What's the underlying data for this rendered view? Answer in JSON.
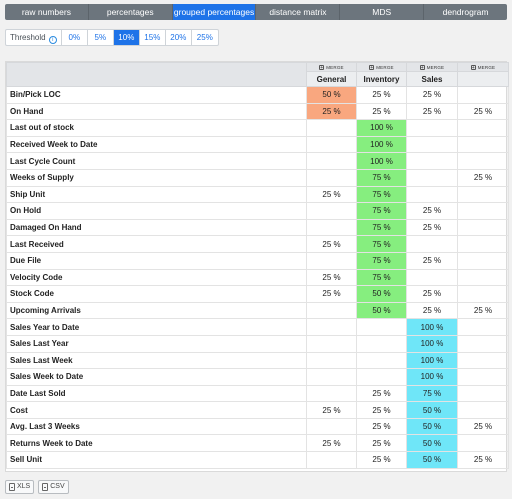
{
  "tabs": [
    {
      "label": "raw numbers",
      "active": false
    },
    {
      "label": "percentages",
      "active": false
    },
    {
      "label": "grouped percentages",
      "active": true
    },
    {
      "label": "distance matrix",
      "active": false
    },
    {
      "label": "MDS",
      "active": false
    },
    {
      "label": "dendrogram",
      "active": false
    }
  ],
  "threshold": {
    "label": "Threshold",
    "info_icon": "i",
    "options": [
      {
        "label": "0%",
        "active": false
      },
      {
        "label": "5%",
        "active": false
      },
      {
        "label": "10%",
        "active": true
      },
      {
        "label": "15%",
        "active": false
      },
      {
        "label": "20%",
        "active": false
      },
      {
        "label": "25%",
        "active": false
      }
    ]
  },
  "table": {
    "merge_label": "MERGE",
    "columns": [
      "General",
      "Inventory",
      "Sales",
      ""
    ],
    "highlight_colors": {
      "orange": "#f9a77f",
      "green": "#86ee7f",
      "cyan": "#6fe6f8"
    },
    "rows": [
      {
        "label": "Bin/Pick LOC",
        "cells": [
          "50 %",
          "25 %",
          "25 %",
          ""
        ],
        "highlight": 0,
        "color": "orange"
      },
      {
        "label": "On Hand",
        "cells": [
          "25 %",
          "25 %",
          "25 %",
          "25 %"
        ],
        "highlight": 0,
        "color": "orange"
      },
      {
        "label": "Last out of stock",
        "cells": [
          "",
          "100 %",
          "",
          ""
        ],
        "highlight": 1,
        "color": "green"
      },
      {
        "label": "Received Week to Date",
        "cells": [
          "",
          "100 %",
          "",
          ""
        ],
        "highlight": 1,
        "color": "green"
      },
      {
        "label": "Last Cycle Count",
        "cells": [
          "",
          "100 %",
          "",
          ""
        ],
        "highlight": 1,
        "color": "green"
      },
      {
        "label": "Weeks of Supply",
        "cells": [
          "",
          "75 %",
          "",
          "25 %"
        ],
        "highlight": 1,
        "color": "green"
      },
      {
        "label": "Ship Unit",
        "cells": [
          "25 %",
          "75 %",
          "",
          ""
        ],
        "highlight": 1,
        "color": "green"
      },
      {
        "label": "On Hold",
        "cells": [
          "",
          "75 %",
          "25 %",
          ""
        ],
        "highlight": 1,
        "color": "green"
      },
      {
        "label": "Damaged On Hand",
        "cells": [
          "",
          "75 %",
          "25 %",
          ""
        ],
        "highlight": 1,
        "color": "green"
      },
      {
        "label": "Last Received",
        "cells": [
          "25 %",
          "75 %",
          "",
          ""
        ],
        "highlight": 1,
        "color": "green"
      },
      {
        "label": "Due File",
        "cells": [
          "",
          "75 %",
          "25 %",
          ""
        ],
        "highlight": 1,
        "color": "green"
      },
      {
        "label": "Velocity Code",
        "cells": [
          "25 %",
          "75 %",
          "",
          ""
        ],
        "highlight": 1,
        "color": "green"
      },
      {
        "label": "Stock Code",
        "cells": [
          "25 %",
          "50 %",
          "25 %",
          ""
        ],
        "highlight": 1,
        "color": "green"
      },
      {
        "label": "Upcoming Arrivals",
        "cells": [
          "",
          "50 %",
          "25 %",
          "25 %"
        ],
        "highlight": 1,
        "color": "green"
      },
      {
        "label": "Sales Year to Date",
        "cells": [
          "",
          "",
          "100 %",
          ""
        ],
        "highlight": 2,
        "color": "cyan"
      },
      {
        "label": "Sales Last Year",
        "cells": [
          "",
          "",
          "100 %",
          ""
        ],
        "highlight": 2,
        "color": "cyan"
      },
      {
        "label": "Sales Last Week",
        "cells": [
          "",
          "",
          "100 %",
          ""
        ],
        "highlight": 2,
        "color": "cyan"
      },
      {
        "label": "Sales Week to Date",
        "cells": [
          "",
          "",
          "100 %",
          ""
        ],
        "highlight": 2,
        "color": "cyan"
      },
      {
        "label": "Date Last Sold",
        "cells": [
          "",
          "25 %",
          "75 %",
          ""
        ],
        "highlight": 2,
        "color": "cyan"
      },
      {
        "label": "Cost",
        "cells": [
          "25 %",
          "25 %",
          "50 %",
          ""
        ],
        "highlight": 2,
        "color": "cyan"
      },
      {
        "label": "Avg. Last 3 Weeks",
        "cells": [
          "",
          "25 %",
          "50 %",
          "25 %"
        ],
        "highlight": 2,
        "color": "cyan"
      },
      {
        "label": "Returns Week to Date",
        "cells": [
          "25 %",
          "25 %",
          "50 %",
          ""
        ],
        "highlight": 2,
        "color": "cyan"
      },
      {
        "label": "Sell Unit",
        "cells": [
          "",
          "25 %",
          "50 %",
          "25 %"
        ],
        "highlight": 2,
        "color": "cyan"
      }
    ]
  },
  "exports": [
    {
      "label": "XLS",
      "icon": "file-icon"
    },
    {
      "label": "CSV",
      "icon": "file-icon"
    }
  ]
}
